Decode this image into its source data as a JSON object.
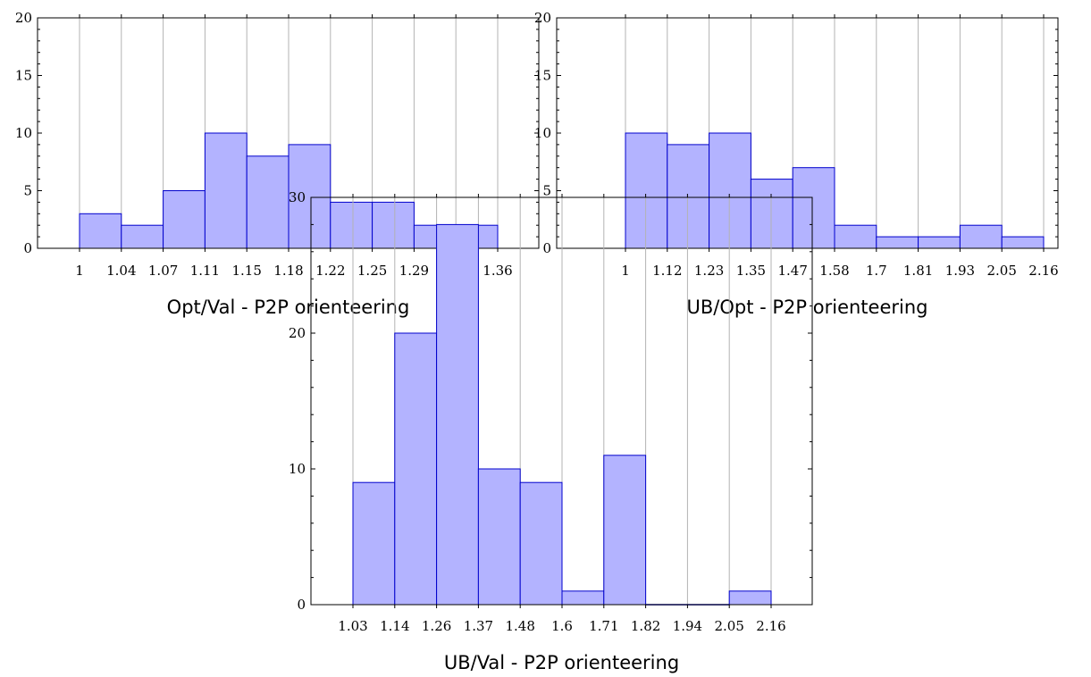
{
  "colors": {
    "bar_fill": "#b3b3ff",
    "bar_stroke": "#0000cc",
    "grid": "#b3b3b3"
  },
  "chart_data": [
    {
      "type": "bar",
      "xlabel": "Opt/Val - P2P orienteering",
      "ylim": [
        0,
        20
      ],
      "yticks": [
        0,
        5,
        10,
        15,
        20
      ],
      "xticks": [
        1,
        1.04,
        1.07,
        1.11,
        1.15,
        1.18,
        1.22,
        1.25,
        1.29,
        1.33,
        1.36
      ],
      "xtick_labels": [
        "1",
        "1.04",
        "1.07",
        "1.11",
        "1.15",
        "1.18",
        "1.22",
        "1.25",
        "1.29",
        "1.33",
        "1.36"
      ],
      "values": [
        3,
        2,
        5,
        10,
        8,
        9,
        4,
        4,
        2,
        2
      ],
      "grid": "vertical"
    },
    {
      "type": "bar",
      "xlabel": "UB/Opt - P2P orienteering",
      "ylim": [
        0,
        20
      ],
      "yticks": [
        0,
        5,
        10,
        15,
        20
      ],
      "xticks": [
        1,
        1.12,
        1.23,
        1.35,
        1.47,
        1.58,
        1.7,
        1.81,
        1.93,
        2.05,
        2.16
      ],
      "xtick_labels": [
        "1",
        "1.12",
        "1.23",
        "1.35",
        "1.47",
        "1.58",
        "1.7",
        "1.81",
        "1.93",
        "2.05",
        "2.16"
      ],
      "values": [
        10,
        9,
        10,
        6,
        7,
        2,
        1,
        1,
        2,
        1
      ],
      "grid": "vertical"
    },
    {
      "type": "bar",
      "xlabel": "UB/Val - P2P orienteering",
      "ylim": [
        0,
        30
      ],
      "yticks": [
        0,
        10,
        20,
        30
      ],
      "xticks": [
        1.03,
        1.14,
        1.26,
        1.37,
        1.48,
        1.6,
        1.71,
        1.82,
        1.94,
        2.05,
        2.16
      ],
      "xtick_labels": [
        "1.03",
        "1.14",
        "1.26",
        "1.37",
        "1.48",
        "1.6",
        "1.71",
        "1.82",
        "1.94",
        "2.05",
        "2.16"
      ],
      "values": [
        9,
        20,
        28,
        10,
        9,
        1,
        11,
        0,
        0,
        1
      ],
      "grid": "vertical"
    }
  ]
}
